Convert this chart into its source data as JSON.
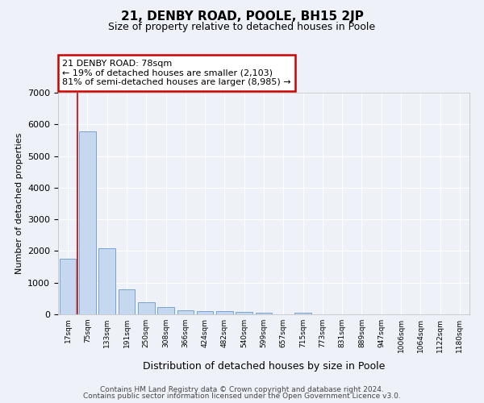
{
  "title": "21, DENBY ROAD, POOLE, BH15 2JP",
  "subtitle": "Size of property relative to detached houses in Poole",
  "xlabel": "Distribution of detached houses by size in Poole",
  "ylabel": "Number of detached properties",
  "bar_color": "#c5d8f0",
  "bar_edge_color": "#6699cc",
  "categories": [
    "17sqm",
    "75sqm",
    "133sqm",
    "191sqm",
    "250sqm",
    "308sqm",
    "366sqm",
    "424sqm",
    "482sqm",
    "540sqm",
    "599sqm",
    "657sqm",
    "715sqm",
    "773sqm",
    "831sqm",
    "889sqm",
    "947sqm",
    "1006sqm",
    "1064sqm",
    "1122sqm",
    "1180sqm"
  ],
  "values": [
    1750,
    5780,
    2080,
    790,
    380,
    220,
    120,
    110,
    95,
    75,
    60,
    0,
    60,
    0,
    0,
    0,
    0,
    0,
    0,
    0,
    0
  ],
  "ylim": [
    0,
    7000
  ],
  "yticks": [
    0,
    1000,
    2000,
    3000,
    4000,
    5000,
    6000,
    7000
  ],
  "property_line_x": 0.5,
  "annotation_text": "21 DENBY ROAD: 78sqm\n← 19% of detached houses are smaller (2,103)\n81% of semi-detached houses are larger (8,985) →",
  "annotation_box_facecolor": "#ffffff",
  "annotation_box_edgecolor": "#cc0000",
  "footer_line1": "Contains HM Land Registry data © Crown copyright and database right 2024.",
  "footer_line2": "Contains public sector information licensed under the Open Government Licence v3.0.",
  "background_color": "#eef2f8",
  "grid_color": "#ffffff",
  "vline_color": "#cc0000",
  "title_fontsize": 11,
  "subtitle_fontsize": 9
}
